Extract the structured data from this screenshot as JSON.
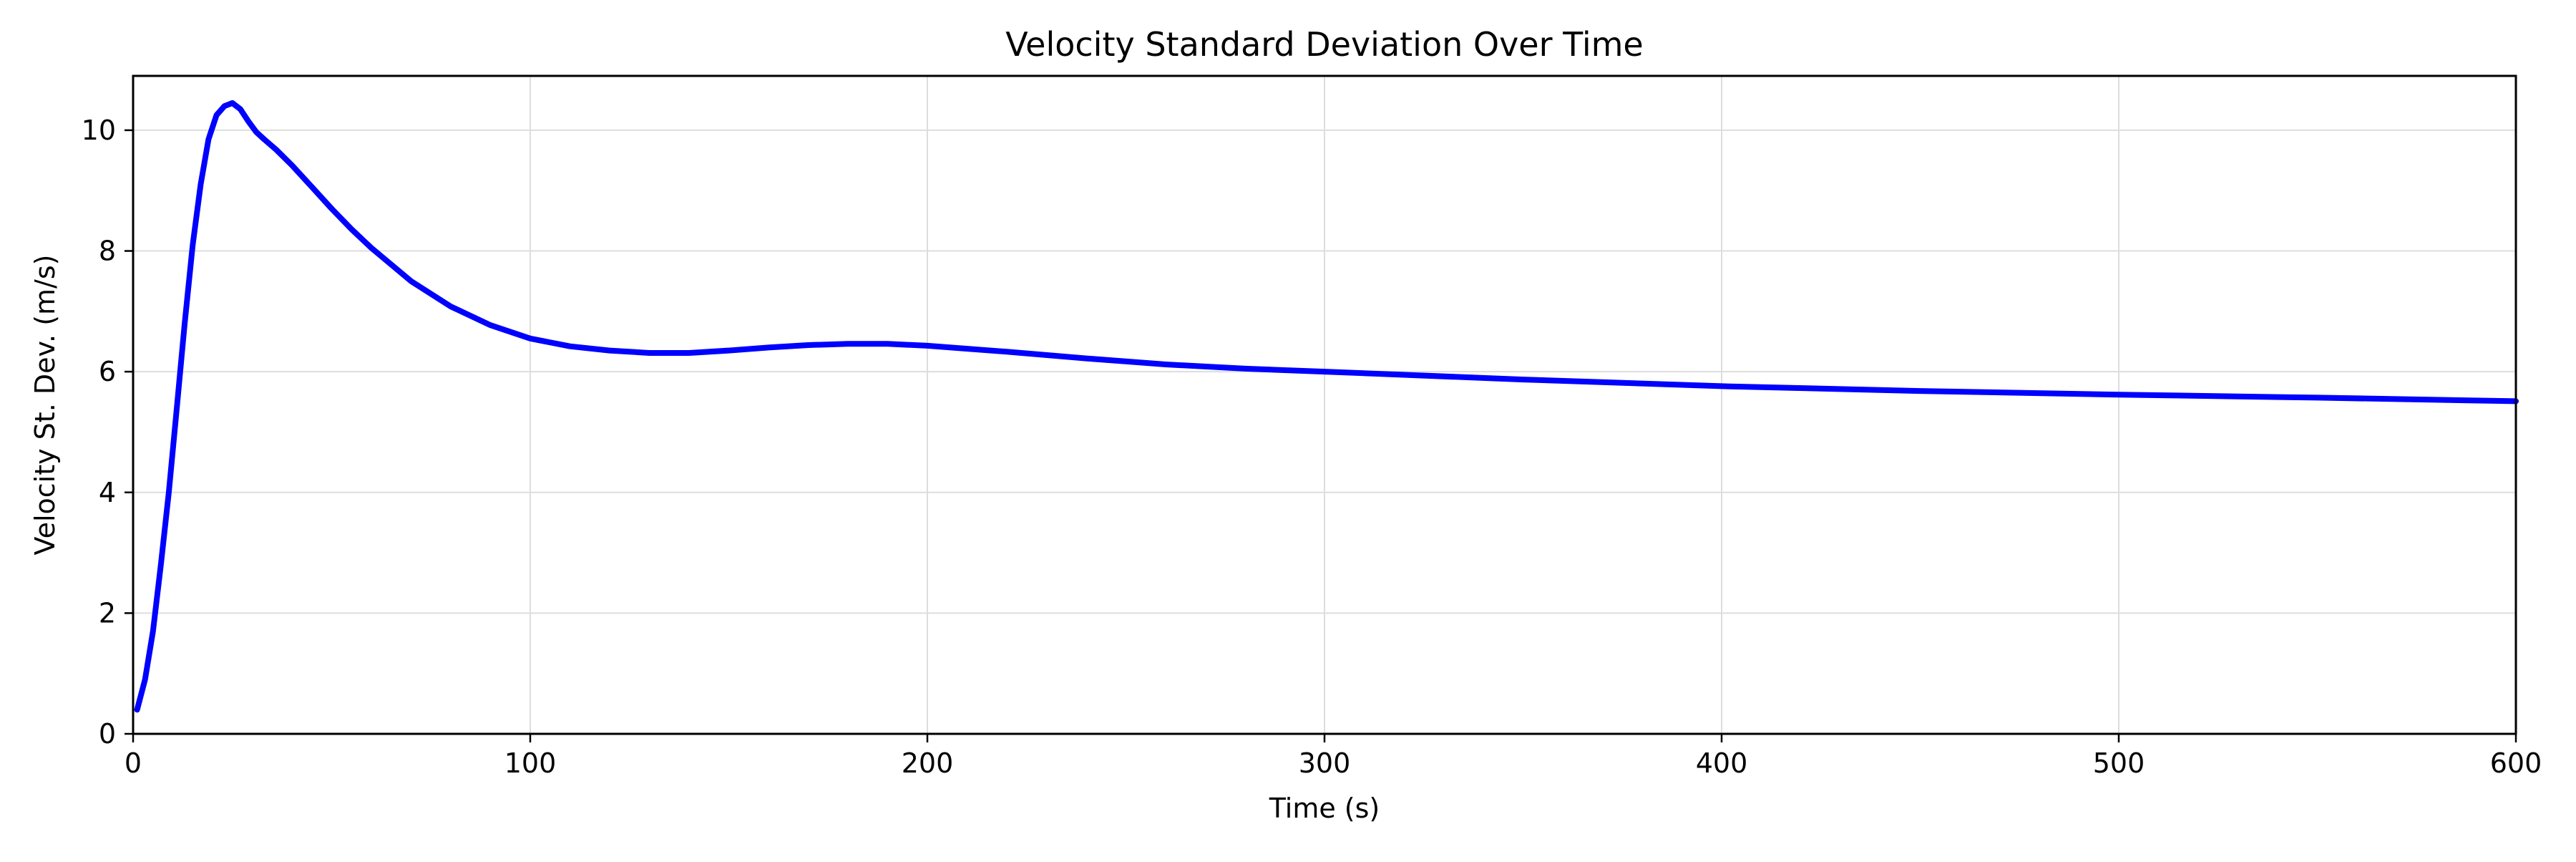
{
  "chart_data": {
    "type": "line",
    "title": "Velocity Standard Deviation Over Time",
    "xlabel": "Time (s)",
    "ylabel": "Velocity St. Dev. (m/s)",
    "xlim": [
      0,
      600
    ],
    "ylim": [
      0,
      10.9
    ],
    "xticks": [
      0,
      100,
      200,
      300,
      400,
      500,
      600
    ],
    "yticks": [
      0,
      2,
      4,
      6,
      8,
      10
    ],
    "grid": true,
    "line_color": "#0000ff",
    "series": [
      {
        "x": [
          1,
          3,
          5,
          7,
          9,
          11,
          13,
          15,
          17,
          19,
          21,
          23,
          25,
          27,
          29,
          31,
          33,
          36,
          40,
          45,
          50,
          55,
          60,
          70,
          80,
          90,
          100,
          110,
          120,
          130,
          140,
          150,
          160,
          170,
          180,
          190,
          200,
          220,
          240,
          260,
          280,
          300,
          350,
          400,
          450,
          500,
          550,
          600
        ],
        "y": [
          0.4,
          0.9,
          1.7,
          2.8,
          4.0,
          5.4,
          6.8,
          8.1,
          9.1,
          9.85,
          10.25,
          10.4,
          10.45,
          10.35,
          10.15,
          9.97,
          9.85,
          9.68,
          9.42,
          9.06,
          8.7,
          8.36,
          8.05,
          7.5,
          7.08,
          6.77,
          6.55,
          6.42,
          6.35,
          6.31,
          6.31,
          6.35,
          6.4,
          6.44,
          6.46,
          6.46,
          6.43,
          6.33,
          6.22,
          6.12,
          6.05,
          6.0,
          5.87,
          5.76,
          5.68,
          5.62,
          5.57,
          5.51
        ]
      }
    ]
  }
}
